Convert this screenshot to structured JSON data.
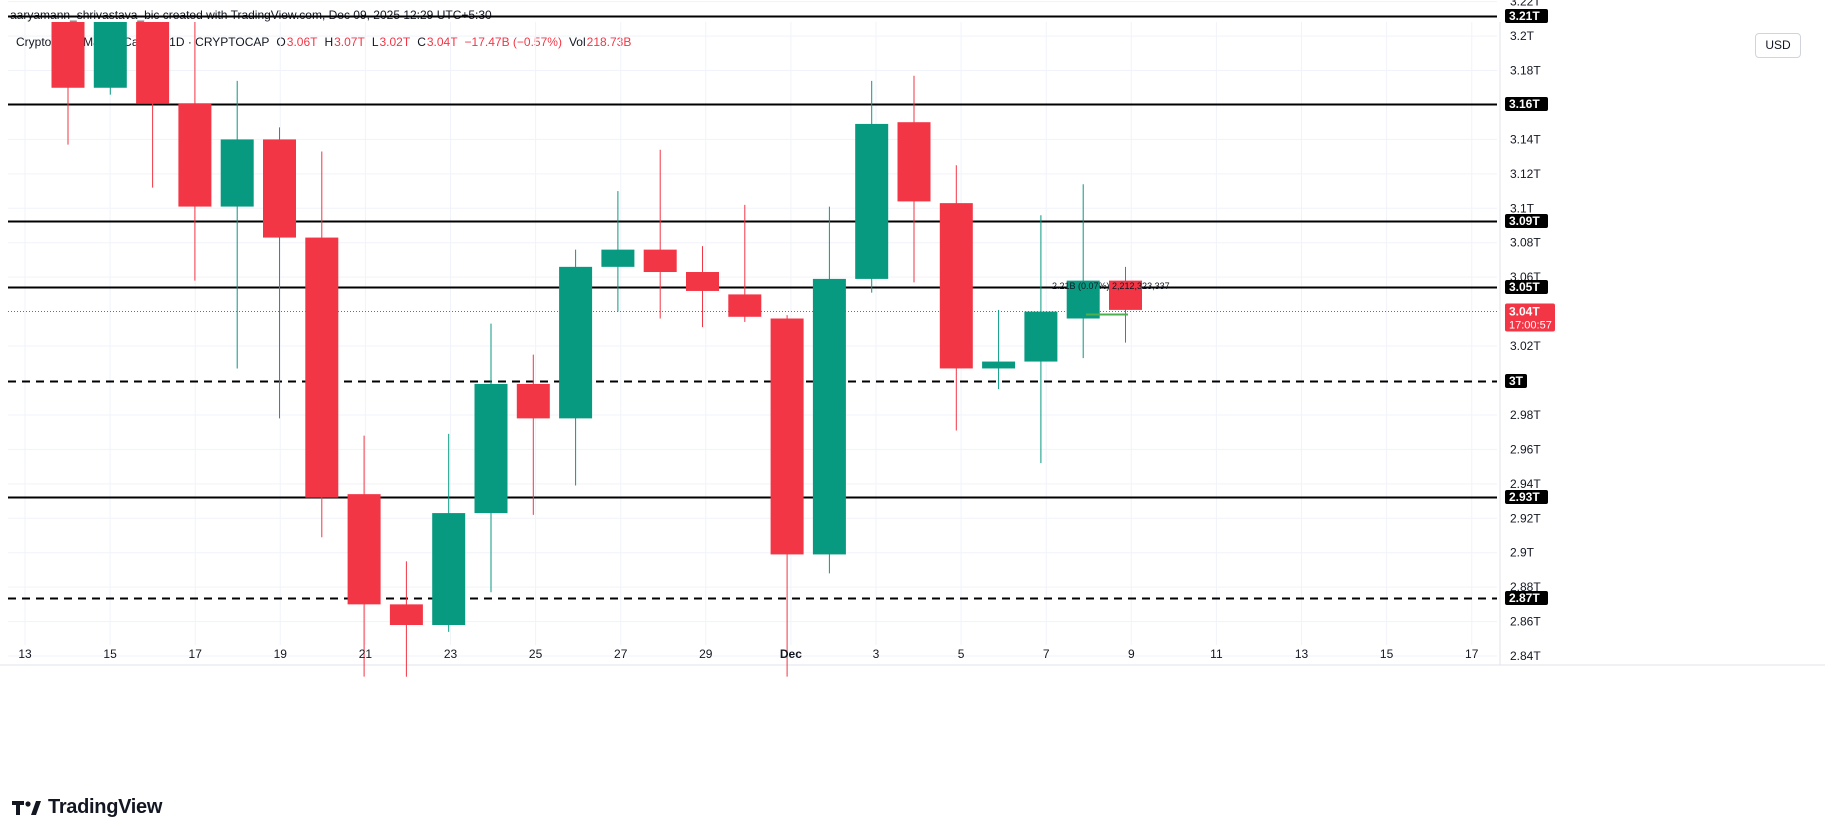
{
  "header": {
    "credit": "aaryamann_shrivastava_bic created with TradingView.com, Dec 09, 2025 12:29 UTC+5:30"
  },
  "legend": {
    "symbol": "Crypto Total Market Cap, $ · 1D · CRYPTOCAP",
    "open_label": "O",
    "open_value": "3.06T",
    "high_label": "H",
    "high_value": "3.07T",
    "low_label": "L",
    "low_value": "3.02T",
    "close_label": "C",
    "close_value": "3.04T",
    "change_value": "−17.47B (−0.57%)",
    "vol_label": "Vol",
    "vol_value": "218.73B"
  },
  "currency_button": {
    "label": "USD"
  },
  "brand": {
    "name": "TradingView",
    "icon": "tradingview-logo-icon"
  },
  "colors": {
    "up": "#089981",
    "down": "#f23645",
    "line": "#000000",
    "grid": "#f0f3fa"
  },
  "chart_data": {
    "type": "candlestick",
    "title": "Crypto Total Market Cap, $ · 1D · CRYPTOCAP",
    "y_unit": "T",
    "ylim": [
      2.825,
      3.245
    ],
    "y_ticks": [
      "2.84T",
      "2.86T",
      "2.88T",
      "2.9T",
      "2.92T",
      "2.94T",
      "2.96T",
      "2.98T",
      "3.02T",
      "3.06T",
      "3.08T",
      "3.1T",
      "3.12T",
      "3.14T",
      "3.18T",
      "3.2T",
      "3.22T"
    ],
    "x_ticks": [
      "13",
      "15",
      "17",
      "19",
      "21",
      "23",
      "25",
      "27",
      "29",
      "Dec",
      "3",
      "5",
      "7",
      "9",
      "11",
      "13",
      "15",
      "17"
    ],
    "grid": true,
    "candles": [
      {
        "date": "Nov 14",
        "o": 3.247,
        "h": 3.25,
        "l": 3.137,
        "c": 3.17
      },
      {
        "date": "Nov 15",
        "o": 3.17,
        "h": 3.25,
        "l": 3.166,
        "c": 3.214
      },
      {
        "date": "Nov 16",
        "o": 3.214,
        "h": 3.25,
        "l": 3.112,
        "c": 3.161
      },
      {
        "date": "Nov 17",
        "o": 3.161,
        "h": 3.232,
        "l": 3.058,
        "c": 3.101
      },
      {
        "date": "Nov 18",
        "o": 3.101,
        "h": 3.174,
        "l": 3.007,
        "c": 3.14
      },
      {
        "date": "Nov 19",
        "o": 3.14,
        "h": 3.147,
        "l": 2.978,
        "c": 3.083
      },
      {
        "date": "Nov 20",
        "o": 3.083,
        "h": 3.133,
        "l": 2.909,
        "c": 2.932
      },
      {
        "date": "Nov 21",
        "o": 2.934,
        "h": 2.968,
        "l": 2.828,
        "c": 2.87
      },
      {
        "date": "Nov 22",
        "o": 2.87,
        "h": 2.895,
        "l": 2.828,
        "c": 2.858
      },
      {
        "date": "Nov 23",
        "o": 2.858,
        "h": 2.969,
        "l": 2.854,
        "c": 2.923
      },
      {
        "date": "Nov 24",
        "o": 2.923,
        "h": 3.033,
        "l": 2.877,
        "c": 2.998
      },
      {
        "date": "Nov 25",
        "o": 2.998,
        "h": 3.015,
        "l": 2.922,
        "c": 2.978
      },
      {
        "date": "Nov 26",
        "o": 2.978,
        "h": 3.076,
        "l": 2.939,
        "c": 3.066
      },
      {
        "date": "Nov 27",
        "o": 3.066,
        "h": 3.11,
        "l": 3.04,
        "c": 3.076
      },
      {
        "date": "Nov 28",
        "o": 3.076,
        "h": 3.134,
        "l": 3.036,
        "c": 3.063
      },
      {
        "date": "Nov 29",
        "o": 3.063,
        "h": 3.078,
        "l": 3.031,
        "c": 3.052
      },
      {
        "date": "Nov 30",
        "o": 3.05,
        "h": 3.102,
        "l": 3.034,
        "c": 3.037
      },
      {
        "date": "Dec 1",
        "o": 3.036,
        "h": 3.038,
        "l": 2.828,
        "c": 2.899
      },
      {
        "date": "Dec 2",
        "o": 2.899,
        "h": 3.101,
        "l": 2.888,
        "c": 3.059
      },
      {
        "date": "Dec 3",
        "o": 3.059,
        "h": 3.174,
        "l": 3.051,
        "c": 3.149
      },
      {
        "date": "Dec 4",
        "o": 3.15,
        "h": 3.177,
        "l": 3.057,
        "c": 3.104
      },
      {
        "date": "Dec 5",
        "o": 3.103,
        "h": 3.125,
        "l": 2.971,
        "c": 3.007
      },
      {
        "date": "Dec 6",
        "o": 3.007,
        "h": 3.041,
        "l": 2.995,
        "c": 3.011
      },
      {
        "date": "Dec 7",
        "o": 3.011,
        "h": 3.096,
        "l": 2.952,
        "c": 3.04
      },
      {
        "date": "Dec 8",
        "o": 3.036,
        "h": 3.114,
        "l": 3.013,
        "c": 3.058
      },
      {
        "date": "Dec 9",
        "o": 3.058,
        "h": 3.066,
        "l": 3.022,
        "c": 3.041
      }
    ],
    "levels": [
      {
        "label": "3.21T",
        "value": 3.2118,
        "style": "solid"
      },
      {
        "label": "3.16T",
        "value": 3.1605,
        "style": "solid"
      },
      {
        "label": "3.09T",
        "value": 3.0925,
        "style": "solid"
      },
      {
        "label": "3.05T",
        "value": 3.0545,
        "style": "solid"
      },
      {
        "label": "3T",
        "value": 3.0,
        "style": "dashed"
      },
      {
        "label": "2.93T",
        "value": 2.9325,
        "style": "solid"
      },
      {
        "label": "2.87T",
        "value": 2.8735,
        "style": "dashed"
      }
    ],
    "last_price": {
      "label": "3.04T",
      "countdown": "17:00:57",
      "value": 3.0405
    },
    "annotation": {
      "text": "2.21B (0.07%) 2,212,323,337",
      "value": 3.048
    }
  }
}
